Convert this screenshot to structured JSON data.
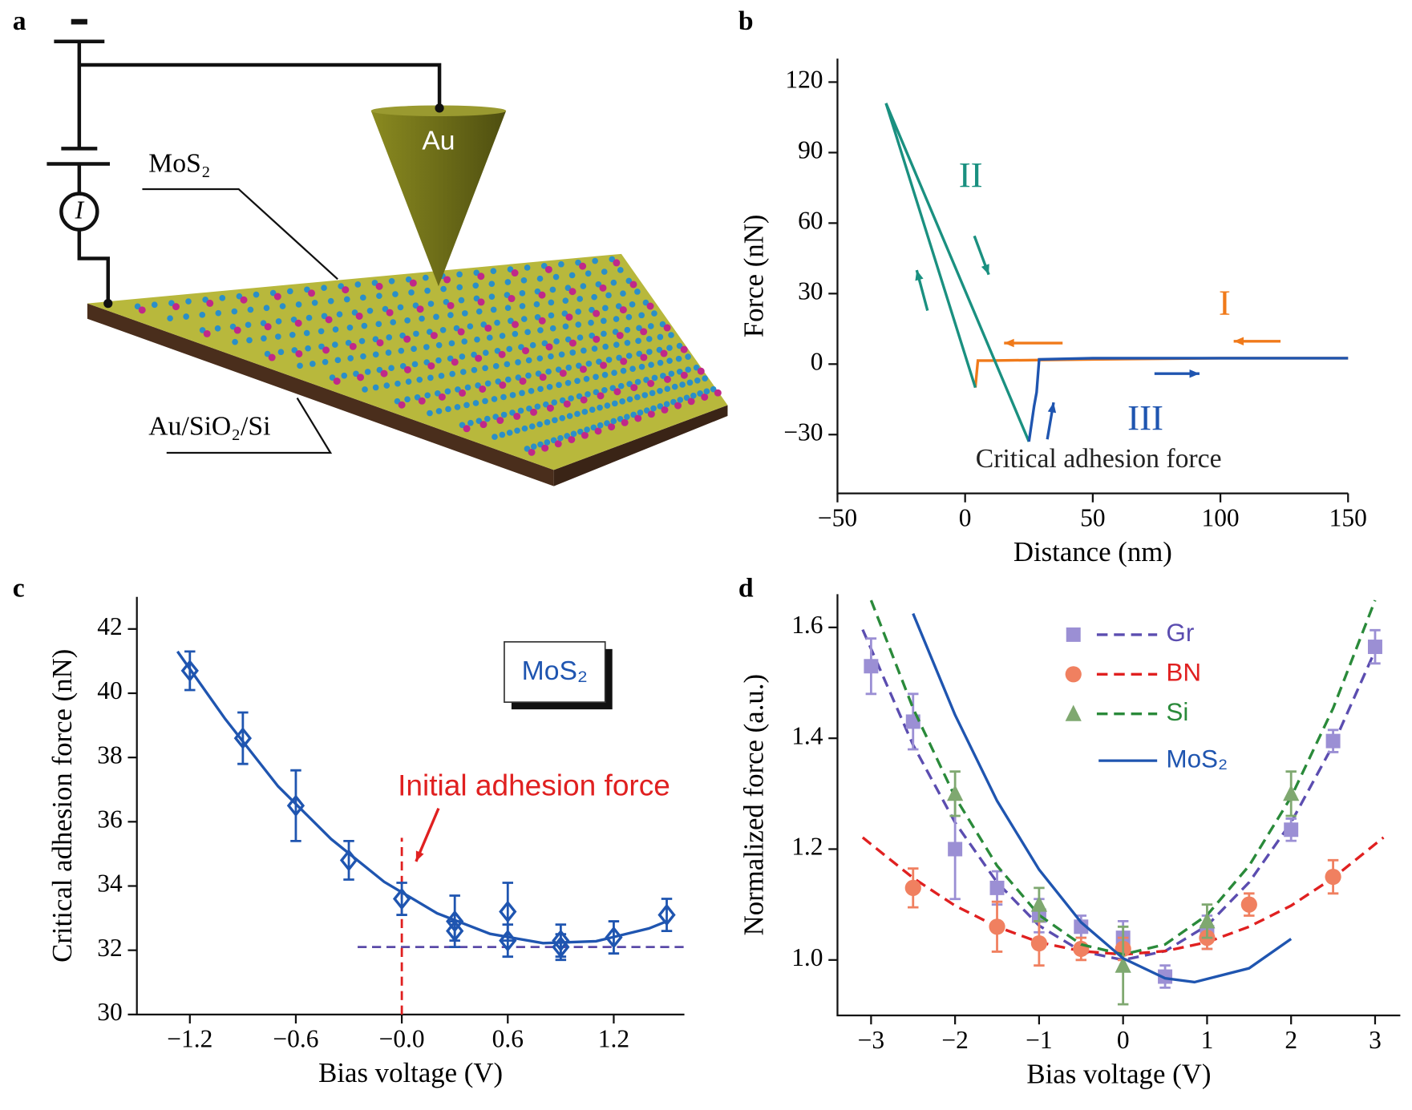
{
  "diagram": {
    "panel_label": "a",
    "labels": {
      "substrate_layer": "MoS₂",
      "tip": "Au",
      "substrate": "Au/SiO₂/Si",
      "meter": "I"
    }
  },
  "chart_data": [
    {
      "type": "line",
      "panel_label": "b",
      "x_label": "Distance (nm)",
      "y_label": "Force (nN)",
      "xlim": [
        -50,
        150
      ],
      "ylim": [
        -55,
        130
      ],
      "xticks": [
        {
          "value": -50,
          "label": "−50"
        },
        0,
        50,
        100,
        150
      ],
      "yticks": [
        {
          "value": -30,
          "label": "−30"
        },
        0,
        30,
        60,
        90,
        120
      ],
      "series": [
        {
          "name": "I",
          "color": "#f07a1a",
          "x": [
            150,
            100,
            50,
            10,
            5,
            4
          ],
          "values": [
            2.5,
            2.5,
            2,
            1.5,
            1.5,
            -10
          ]
        },
        {
          "name": "II",
          "color": "#1a9080",
          "x": [
            4,
            -31,
            25
          ],
          "values": [
            -10,
            111,
            -33
          ]
        },
        {
          "name": "III",
          "color": "#1f55b0",
          "x": [
            25,
            27,
            28,
            29,
            50,
            100,
            150
          ],
          "values": [
            -33,
            -18,
            -12,
            2,
            2.5,
            2.5,
            2.5
          ]
        }
      ],
      "annotations": [
        {
          "text": "Critical adhesion force",
          "color": "#222222"
        }
      ]
    },
    {
      "type": "scatter",
      "panel_label": "c",
      "x_label": "Bias voltage (V)",
      "y_label": "Critical adhesion force (nN)",
      "xlim": [
        -1.5,
        1.6
      ],
      "ylim": [
        30,
        43
      ],
      "xticks": [
        {
          "value": -1.2,
          "label": "−1.2"
        },
        {
          "value": -0.6,
          "label": "−0.6"
        },
        {
          "value": 0,
          "label": "−0.0"
        },
        0.6,
        1.2
      ],
      "yticks": [
        30,
        32,
        34,
        36,
        38,
        40,
        42
      ],
      "series": [
        {
          "color": "#1f55b0",
          "marker_color": "#1f55b0",
          "marker": "diamond",
          "line_style": "solid",
          "x": [
            -1.2,
            -0.9,
            -0.6,
            -0.3,
            0,
            0.3,
            0.3,
            0.6,
            0.6,
            0.9,
            0.9,
            1.2,
            1.5
          ],
          "values": [
            40.7,
            38.6,
            36.5,
            34.8,
            33.6,
            32.9,
            32.6,
            33.2,
            32.3,
            32.3,
            32.1,
            32.4,
            33.1
          ],
          "errors": [
            0.6,
            0.8,
            1.1,
            0.6,
            0.5,
            0.8,
            0.3,
            0.9,
            0.5,
            0.5,
            0.4,
            0.5,
            0.5
          ],
          "fit_x": [
            -1.27,
            -1.0,
            -0.7,
            -0.4,
            -0.1,
            0.2,
            0.5,
            0.8,
            1.1,
            1.4,
            1.5
          ],
          "fit_values": [
            41.3,
            39.2,
            37.1,
            35.46,
            34.13,
            33.15,
            32.51,
            32.22,
            32.28,
            32.68,
            32.9
          ]
        }
      ],
      "reference_lines": [
        {
          "x": [
            -0.25,
            1.6
          ],
          "y": [
            32.1,
            32.1
          ],
          "color": "#5a4aa8"
        },
        {
          "x": [
            0,
            0
          ],
          "y": [
            30,
            35.5
          ],
          "color": "#e02020"
        }
      ],
      "annotations": [
        {
          "text": "MoS₂",
          "color": "#1f55b0"
        },
        {
          "text": "Initial adhesion force",
          "color": "#e02020"
        }
      ]
    },
    {
      "type": "scatter",
      "panel_label": "d",
      "x_label": "Bias voltage (V)",
      "y_label": "Normalized force (a.u.)",
      "xlim": [
        -3.4,
        3.3
      ],
      "ylim": [
        0.9,
        1.66
      ],
      "xticks": [
        {
          "value": -3,
          "label": "−3"
        },
        {
          "value": -2,
          "label": "−2"
        },
        {
          "value": -1,
          "label": "−1"
        },
        0,
        1,
        2,
        3
      ],
      "yticks": [
        {
          "value": 1,
          "label": "1.0"
        },
        1.2,
        1.4,
        1.6
      ],
      "legend": "upper center",
      "series": [
        {
          "name": "Gr",
          "color": "#5b4db0",
          "marker_color": "#9b8fd4",
          "marker": "square",
          "line_style": "dashed",
          "x": [
            -3,
            -2.5,
            -2,
            -1.5,
            -1,
            -0.5,
            0,
            0.5,
            1,
            2,
            2.5,
            3
          ],
          "values": [
            1.53,
            1.43,
            1.2,
            1.13,
            1.08,
            1.06,
            1.04,
            0.97,
            1.05,
            1.235,
            1.395,
            1.565
          ],
          "errors": [
            0.05,
            0.05,
            0.09,
            0.03,
            0.03,
            0.02,
            0.03,
            0.02,
            0.03,
            0.02,
            0.02,
            0.03
          ],
          "fit_x": [
            -3.1,
            -2.5,
            -2,
            -1.5,
            -1,
            -0.5,
            0,
            0.5,
            1,
            1.5,
            2,
            2.5,
            3
          ],
          "fit_values": [
            1.596,
            1.388,
            1.248,
            1.14,
            1.062,
            1.016,
            1.0,
            1.016,
            1.062,
            1.14,
            1.248,
            1.388,
            1.558
          ]
        },
        {
          "name": "BN",
          "color": "#e02020",
          "marker_color": "#f08060",
          "marker": "circle",
          "line_style": "dashed",
          "x": [
            -2.5,
            -1.5,
            -1,
            -0.5,
            0,
            1,
            1.5,
            2.5
          ],
          "values": [
            1.13,
            1.06,
            1.03,
            1.02,
            1.02,
            1.04,
            1.1,
            1.15
          ],
          "errors": [
            0.035,
            0.045,
            0.04,
            0.02,
            0.02,
            0.02,
            0.02,
            0.03
          ],
          "fit_x": [
            -3.1,
            -2.5,
            -2,
            -1.5,
            -1,
            -0.5,
            0,
            0.5,
            1,
            1.5,
            2,
            2.5,
            3.1
          ],
          "fit_values": [
            1.221,
            1.148,
            1.098,
            1.06,
            1.032,
            1.016,
            1.01,
            1.016,
            1.032,
            1.06,
            1.098,
            1.148,
            1.221
          ]
        },
        {
          "name": "Si",
          "color": "#2a8a3a",
          "marker_color": "#7fa870",
          "marker": "triangle",
          "line_style": "dashed",
          "x": [
            -2,
            -1,
            0,
            1,
            2
          ],
          "values": [
            1.3,
            1.1,
            0.99,
            1.07,
            1.3
          ],
          "errors": [
            0.04,
            0.03,
            0.07,
            0.03,
            0.04
          ],
          "fit_x": [
            -3,
            -2.5,
            -2,
            -1.5,
            -1,
            -0.5,
            0,
            0.5,
            1,
            1.5,
            2,
            2.5,
            3
          ],
          "fit_values": [
            1.649,
            1.454,
            1.294,
            1.17,
            1.081,
            1.028,
            1.01,
            1.028,
            1.081,
            1.17,
            1.294,
            1.454,
            1.649
          ]
        },
        {
          "name": "MoS₂",
          "color": "#1f55b0",
          "line_style": "solid",
          "fit_x": [
            -2.5,
            -2,
            -1.5,
            -1,
            -0.5,
            0,
            0.5,
            0.85,
            1.5,
            2
          ],
          "fit_values": [
            1.625,
            1.442,
            1.287,
            1.163,
            1.068,
            1.003,
            0.967,
            0.96,
            0.985,
            1.038
          ]
        }
      ]
    }
  ]
}
